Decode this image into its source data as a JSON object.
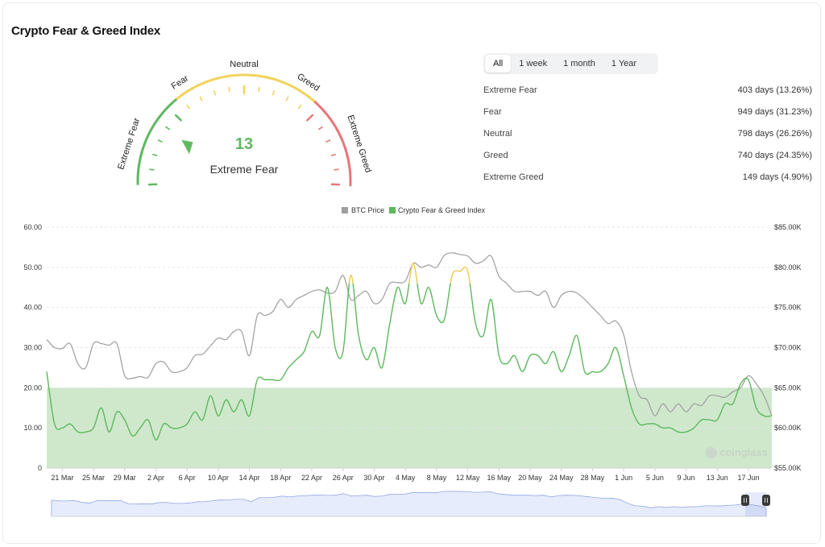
{
  "header": {
    "title": "Crypto Fear & Greed Index"
  },
  "gauge": {
    "value": 13,
    "classification": "Extreme Fear",
    "labels": [
      "Extreme Fear",
      "Fear",
      "Neutral",
      "Greed",
      "Extreme Greed"
    ],
    "colors": {
      "fear": "#5fb85f",
      "neutral": "#f2d35a",
      "greed": "#e8767a"
    }
  },
  "tabs": [
    {
      "label": "All",
      "active": true
    },
    {
      "label": "1 week",
      "active": false
    },
    {
      "label": "1 month",
      "active": false
    },
    {
      "label": "1 Year",
      "active": false
    }
  ],
  "stats": [
    {
      "label": "Extreme Fear",
      "value": "403 days (13.26%)"
    },
    {
      "label": "Fear",
      "value": "949 days (31.23%)"
    },
    {
      "label": "Neutral",
      "value": "798 days (26.26%)"
    },
    {
      "label": "Greed",
      "value": "740 days (24.35%)"
    },
    {
      "label": "Extreme Greed",
      "value": "149 days (4.90%)"
    }
  ],
  "watermark": "coinglass",
  "chart_data": {
    "type": "line",
    "legend": {
      "position": "top-center",
      "items": [
        "BTC Price",
        "Crypto Fear & Greed Index"
      ]
    },
    "colors": {
      "btc": "#9e9e9e",
      "fear": "#5cb85c",
      "neutral": "#f0c94a",
      "zone": "#cfe8cc",
      "navigator": "#8fa6e6"
    },
    "x_ticks": [
      "21 Mar",
      "25 Mar",
      "29 Mar",
      "2 Apr",
      "6 Apr",
      "10 Apr",
      "14 Apr",
      "18 Apr",
      "22 Apr",
      "26 Apr",
      "30 Apr",
      "4 May",
      "8 May",
      "12 May",
      "16 May",
      "20 May",
      "24 May",
      "28 May",
      "1 Jun",
      "5 Jun",
      "9 Jun",
      "13 Jun",
      "17 Jun"
    ],
    "y_left": {
      "min": 0,
      "max": 60,
      "ticks": [
        "0",
        "10.00",
        "20.00",
        "30.00",
        "40.00",
        "50.00",
        "60.00"
      ]
    },
    "y_right": {
      "min": 55000,
      "max": 85000,
      "ticks": [
        "$55.00K",
        "$60.00K",
        "$65.00K",
        "$70.00K",
        "$75.00K",
        "$80.00K",
        "$85.00K"
      ]
    },
    "extreme_fear_zone": [
      0,
      20
    ],
    "fear_greed_series": [
      [
        "19 Mar",
        24
      ],
      [
        "20 Mar",
        11
      ],
      [
        "21 Mar",
        10
      ],
      [
        "22 Mar",
        11
      ],
      [
        "23 Mar",
        9
      ],
      [
        "24 Mar",
        9
      ],
      [
        "25 Mar",
        10
      ],
      [
        "26 Mar",
        15
      ],
      [
        "27 Mar",
        9
      ],
      [
        "28 Mar",
        14
      ],
      [
        "29 Mar",
        12
      ],
      [
        "30 Mar",
        8
      ],
      [
        "31 Mar",
        10
      ],
      [
        "1 Apr",
        12
      ],
      [
        "2 Apr",
        7
      ],
      [
        "3 Apr",
        11
      ],
      [
        "4 Apr",
        10
      ],
      [
        "5 Apr",
        10
      ],
      [
        "6 Apr",
        11
      ],
      [
        "7 Apr",
        14
      ],
      [
        "8 Apr",
        12
      ],
      [
        "9 Apr",
        18
      ],
      [
        "10 Apr",
        13
      ],
      [
        "11 Apr",
        17
      ],
      [
        "12 Apr",
        14
      ],
      [
        "13 Apr",
        17
      ],
      [
        "14 Apr",
        13
      ],
      [
        "15 Apr",
        22
      ],
      [
        "16 Apr",
        22
      ],
      [
        "17 Apr",
        22
      ],
      [
        "18 Apr",
        22
      ],
      [
        "19 Apr",
        25
      ],
      [
        "20 Apr",
        27
      ],
      [
        "21 Apr",
        29
      ],
      [
        "22 Apr",
        34
      ],
      [
        "23 Apr",
        33
      ],
      [
        "24 Apr",
        45
      ],
      [
        "25 Apr",
        30
      ],
      [
        "26 Apr",
        29
      ],
      [
        "27 Apr",
        48
      ],
      [
        "28 Apr",
        33
      ],
      [
        "29 Apr",
        27
      ],
      [
        "30 Apr",
        30
      ],
      [
        "1 May",
        25
      ],
      [
        "2 May",
        36
      ],
      [
        "3 May",
        45
      ],
      [
        "4 May",
        41
      ],
      [
        "5 May",
        51
      ],
      [
        "6 May",
        41
      ],
      [
        "7 May",
        45
      ],
      [
        "8 May",
        38
      ],
      [
        "9 May",
        37
      ],
      [
        "10 May",
        48
      ],
      [
        "11 May",
        49
      ],
      [
        "12 May",
        49
      ],
      [
        "13 May",
        36
      ],
      [
        "14 May",
        33
      ],
      [
        "15 May",
        42
      ],
      [
        "16 May",
        28
      ],
      [
        "17 May",
        26
      ],
      [
        "18 May",
        28
      ],
      [
        "19 May",
        24
      ],
      [
        "20 May",
        28
      ],
      [
        "21 May",
        28
      ],
      [
        "22 May",
        26
      ],
      [
        "23 May",
        29
      ],
      [
        "24 May",
        24
      ],
      [
        "25 May",
        28
      ],
      [
        "26 May",
        33
      ],
      [
        "27 May",
        24
      ],
      [
        "28 May",
        24
      ],
      [
        "29 May",
        24
      ],
      [
        "30 May",
        26
      ],
      [
        "31 May",
        30
      ],
      [
        "1 Jun",
        23
      ],
      [
        "2 Jun",
        15
      ],
      [
        "3 Jun",
        11
      ],
      [
        "4 Jun",
        11
      ],
      [
        "5 Jun",
        11
      ],
      [
        "6 Jun",
        10
      ],
      [
        "7 Jun",
        10
      ],
      [
        "8 Jun",
        9
      ],
      [
        "9 Jun",
        9
      ],
      [
        "10 Jun",
        10
      ],
      [
        "11 Jun",
        12
      ],
      [
        "12 Jun",
        12
      ],
      [
        "13 Jun",
        12
      ],
      [
        "14 Jun",
        16
      ],
      [
        "15 Jun",
        16
      ],
      [
        "16 Jun",
        21
      ],
      [
        "17 Jun",
        22
      ],
      [
        "18 Jun",
        15
      ],
      [
        "19 Jun",
        13
      ],
      [
        "20 Jun",
        13
      ]
    ],
    "btc_price_series": [
      [
        "19 Mar",
        71000
      ],
      [
        "20 Mar",
        70000
      ],
      [
        "21 Mar",
        69900
      ],
      [
        "22 Mar",
        70500
      ],
      [
        "23 Mar",
        68000
      ],
      [
        "24 Mar",
        67500
      ],
      [
        "25 Mar",
        70500
      ],
      [
        "26 Mar",
        70500
      ],
      [
        "27 Mar",
        70300
      ],
      [
        "28 Mar",
        70500
      ],
      [
        "29 Mar",
        66500
      ],
      [
        "30 Mar",
        66200
      ],
      [
        "31 Mar",
        66400
      ],
      [
        "1 Apr",
        66300
      ],
      [
        "2 Apr",
        68000
      ],
      [
        "3 Apr",
        68200
      ],
      [
        "4 Apr",
        67000
      ],
      [
        "5 Apr",
        67000
      ],
      [
        "6 Apr",
        67500
      ],
      [
        "7 Apr",
        69000
      ],
      [
        "8 Apr",
        69200
      ],
      [
        "9 Apr",
        70200
      ],
      [
        "10 Apr",
        71200
      ],
      [
        "11 Apr",
        71000
      ],
      [
        "12 Apr",
        72000
      ],
      [
        "13 Apr",
        72000
      ],
      [
        "14 Apr",
        69000
      ],
      [
        "15 Apr",
        74000
      ],
      [
        "16 Apr",
        74000
      ],
      [
        "17 Apr",
        74500
      ],
      [
        "18 Apr",
        76000
      ],
      [
        "19 Apr",
        75000
      ],
      [
        "20 Apr",
        76000
      ],
      [
        "21 Apr",
        76500
      ],
      [
        "22 Apr",
        77000
      ],
      [
        "23 Apr",
        77200
      ],
      [
        "24 Apr",
        76800
      ],
      [
        "25 Apr",
        77000
      ],
      [
        "26 Apr",
        79000
      ],
      [
        "27 Apr",
        76000
      ],
      [
        "28 Apr",
        76500
      ],
      [
        "29 Apr",
        77000
      ],
      [
        "30 Apr",
        75500
      ],
      [
        "1 May",
        76000
      ],
      [
        "2 May",
        78000
      ],
      [
        "3 May",
        78100
      ],
      [
        "4 May",
        78300
      ],
      [
        "5 May",
        80500
      ],
      [
        "6 May",
        80000
      ],
      [
        "7 May",
        80300
      ],
      [
        "8 May",
        80000
      ],
      [
        "9 May",
        81500
      ],
      [
        "10 May",
        81800
      ],
      [
        "11 May",
        81600
      ],
      [
        "12 May",
        81400
      ],
      [
        "13 May",
        80500
      ],
      [
        "14 May",
        80800
      ],
      [
        "15 May",
        81400
      ],
      [
        "16 May",
        78900
      ],
      [
        "17 May",
        78000
      ],
      [
        "18 May",
        77000
      ],
      [
        "19 May",
        77000
      ],
      [
        "20 May",
        77000
      ],
      [
        "21 May",
        76500
      ],
      [
        "22 May",
        77000
      ],
      [
        "23 May",
        75000
      ],
      [
        "24 May",
        76500
      ],
      [
        "25 May",
        77000
      ],
      [
        "26 May",
        76800
      ],
      [
        "27 May",
        76000
      ],
      [
        "28 May",
        75000
      ],
      [
        "29 May",
        74000
      ],
      [
        "30 May",
        73000
      ],
      [
        "31 May",
        73300
      ],
      [
        "1 Jun",
        71600
      ],
      [
        "2 Jun",
        67000
      ],
      [
        "3 Jun",
        64000
      ],
      [
        "4 Jun",
        63500
      ],
      [
        "5 Jun",
        61500
      ],
      [
        "6 Jun",
        63000
      ],
      [
        "7 Jun",
        62000
      ],
      [
        "8 Jun",
        63000
      ],
      [
        "9 Jun",
        62000
      ],
      [
        "10 Jun",
        63000
      ],
      [
        "11 Jun",
        62800
      ],
      [
        "12 Jun",
        64000
      ],
      [
        "13 Jun",
        64000
      ],
      [
        "14 Jun",
        63800
      ],
      [
        "15 Jun",
        64500
      ],
      [
        "16 Jun",
        65000
      ],
      [
        "17 Jun",
        66500
      ],
      [
        "18 Jun",
        65500
      ],
      [
        "19 Jun",
        64000
      ],
      [
        "20 Jun",
        61500
      ]
    ]
  }
}
